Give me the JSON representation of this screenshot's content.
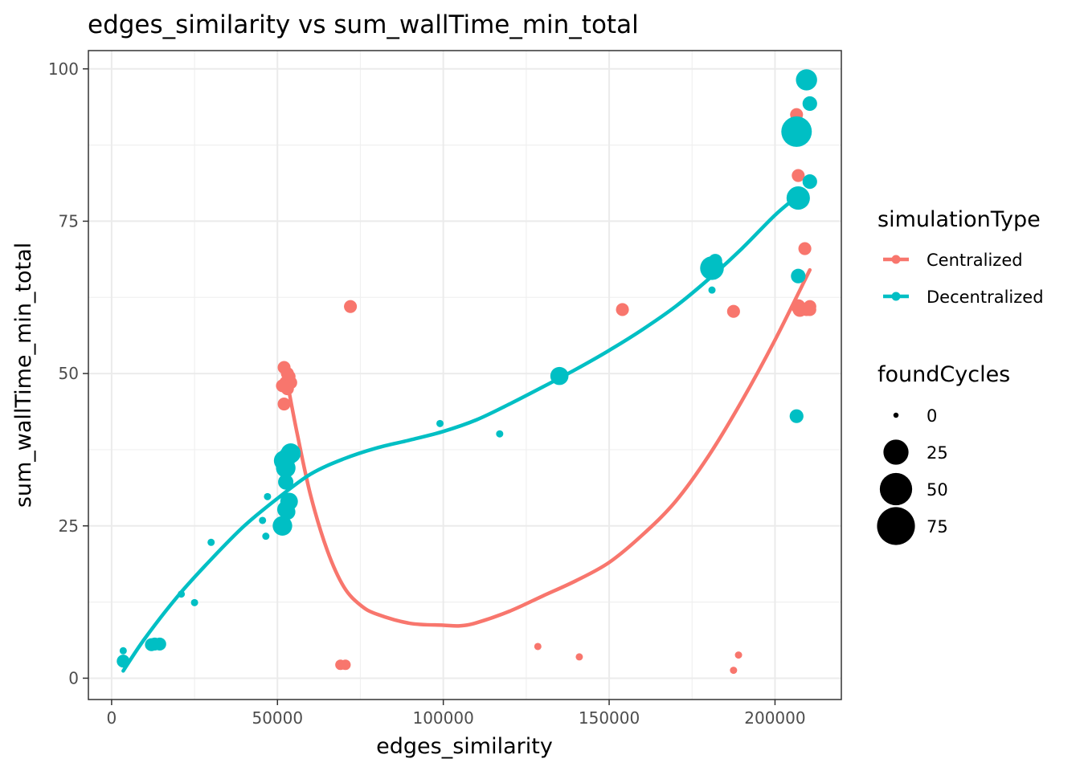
{
  "chart_data": {
    "type": "scatter",
    "title": "edges_similarity  vs  sum_wallTime_min_total",
    "xlabel": "edges_similarity",
    "ylabel": "sum_wallTime_min_total",
    "xlim": [
      -7000,
      220000
    ],
    "ylim": [
      -3.5,
      103
    ],
    "x_ticks": [
      0,
      50000,
      100000,
      150000,
      200000
    ],
    "y_ticks": [
      0,
      25,
      50,
      75,
      100
    ],
    "grid": true,
    "legend_color_title": "simulationType",
    "legend_size_title": "foundCycles",
    "legend_placement": "right",
    "size_legend": [
      {
        "label": "0",
        "value": 0
      },
      {
        "label": "25",
        "value": 25
      },
      {
        "label": "50",
        "value": 50
      },
      {
        "label": "75",
        "value": 75
      }
    ],
    "series": [
      {
        "name": "Centralized",
        "color": "#F8766D",
        "points": [
          {
            "x": 52000,
            "y": 51,
            "size": 3
          },
          {
            "x": 52500,
            "y": 48.5,
            "size": 3
          },
          {
            "x": 53000,
            "y": 50,
            "size": 3
          },
          {
            "x": 53500,
            "y": 49.5,
            "size": 3
          },
          {
            "x": 54000,
            "y": 48.5,
            "size": 3
          },
          {
            "x": 53000,
            "y": 47.5,
            "size": 3
          },
          {
            "x": 51500,
            "y": 48,
            "size": 3
          },
          {
            "x": 52000,
            "y": 45,
            "size": 3
          },
          {
            "x": 72000,
            "y": 61,
            "size": 3
          },
          {
            "x": 69000,
            "y": 2.2,
            "size": 1
          },
          {
            "x": 70500,
            "y": 2.2,
            "size": 1
          },
          {
            "x": 128500,
            "y": 5.2,
            "size": 0
          },
          {
            "x": 141000,
            "y": 3.5,
            "size": 0
          },
          {
            "x": 154000,
            "y": 60.5,
            "size": 3
          },
          {
            "x": 187500,
            "y": 60.2,
            "size": 3
          },
          {
            "x": 187500,
            "y": 1.3,
            "size": 0
          },
          {
            "x": 189000,
            "y": 3.8,
            "size": 0
          },
          {
            "x": 206500,
            "y": 92.5,
            "size": 3
          },
          {
            "x": 207000,
            "y": 82.5,
            "size": 3
          },
          {
            "x": 207000,
            "y": 61,
            "size": 5
          },
          {
            "x": 207500,
            "y": 60.5,
            "size": 5
          },
          {
            "x": 209000,
            "y": 70.5,
            "size": 3
          },
          {
            "x": 209500,
            "y": 60.5,
            "size": 3
          },
          {
            "x": 210500,
            "y": 61,
            "size": 3
          },
          {
            "x": 210500,
            "y": 60.5,
            "size": 3
          }
        ],
        "smooth": [
          [
            53500,
            47
          ],
          [
            56000,
            40
          ],
          [
            60000,
            30
          ],
          [
            65000,
            21
          ],
          [
            70000,
            15
          ],
          [
            75000,
            12
          ],
          [
            80000,
            10.5
          ],
          [
            90000,
            9
          ],
          [
            100000,
            8.7
          ],
          [
            105000,
            8.6
          ],
          [
            110000,
            9.1
          ],
          [
            120000,
            11
          ],
          [
            130000,
            13.5
          ],
          [
            140000,
            16
          ],
          [
            150000,
            19
          ],
          [
            160000,
            23.5
          ],
          [
            170000,
            29
          ],
          [
            180000,
            36.5
          ],
          [
            190000,
            45.5
          ],
          [
            200000,
            55.5
          ],
          [
            210500,
            67
          ]
        ]
      },
      {
        "name": "Decentralized",
        "color": "#00BFC4",
        "points": [
          {
            "x": 3500,
            "y": 4.5,
            "size": 0
          },
          {
            "x": 3500,
            "y": 2.8,
            "size": 3
          },
          {
            "x": 12000,
            "y": 5.5,
            "size": 3
          },
          {
            "x": 13000,
            "y": 5.6,
            "size": 3
          },
          {
            "x": 14500,
            "y": 5.6,
            "size": 3
          },
          {
            "x": 21000,
            "y": 13.8,
            "size": 0
          },
          {
            "x": 25000,
            "y": 12.4,
            "size": 0
          },
          {
            "x": 30000,
            "y": 22.3,
            "size": 0
          },
          {
            "x": 45500,
            "y": 25.9,
            "size": 0
          },
          {
            "x": 46500,
            "y": 23.3,
            "size": 0
          },
          {
            "x": 47000,
            "y": 29.8,
            "size": 0
          },
          {
            "x": 51500,
            "y": 25,
            "size": 14
          },
          {
            "x": 52500,
            "y": 27.7,
            "size": 9
          },
          {
            "x": 53000,
            "y": 27.3,
            "size": 7
          },
          {
            "x": 53500,
            "y": 29,
            "size": 10
          },
          {
            "x": 52500,
            "y": 32.2,
            "size": 6
          },
          {
            "x": 52500,
            "y": 34.5,
            "size": 14
          },
          {
            "x": 52000,
            "y": 35.7,
            "size": 16
          },
          {
            "x": 53000,
            "y": 36.3,
            "size": 12
          },
          {
            "x": 54000,
            "y": 36.9,
            "size": 15
          },
          {
            "x": 99000,
            "y": 41.8,
            "size": 0
          },
          {
            "x": 117000,
            "y": 40.1,
            "size": 0
          },
          {
            "x": 135000,
            "y": 49.6,
            "size": 11
          },
          {
            "x": 181000,
            "y": 63.7,
            "size": 0
          },
          {
            "x": 181000,
            "y": 67.3,
            "size": 25
          },
          {
            "x": 182000,
            "y": 68.5,
            "size": 4
          },
          {
            "x": 206500,
            "y": 43,
            "size": 4
          },
          {
            "x": 207000,
            "y": 66,
            "size": 5
          },
          {
            "x": 207000,
            "y": 78.8,
            "size": 24
          },
          {
            "x": 206500,
            "y": 89.7,
            "size": 50
          },
          {
            "x": 209500,
            "y": 98.2,
            "size": 18
          },
          {
            "x": 210500,
            "y": 94.3,
            "size": 5
          },
          {
            "x": 210500,
            "y": 81.5,
            "size": 5
          }
        ],
        "smooth": [
          [
            3500,
            1.2
          ],
          [
            10000,
            6.5
          ],
          [
            20000,
            13.5
          ],
          [
            30000,
            19.5
          ],
          [
            40000,
            25
          ],
          [
            50000,
            29.5
          ],
          [
            60000,
            33.5
          ],
          [
            70000,
            36
          ],
          [
            80000,
            37.8
          ],
          [
            90000,
            39.1
          ],
          [
            100000,
            40.5
          ],
          [
            110000,
            42.4
          ],
          [
            120000,
            45
          ],
          [
            130000,
            47.8
          ],
          [
            140000,
            50.7
          ],
          [
            150000,
            53.8
          ],
          [
            160000,
            57.2
          ],
          [
            170000,
            61
          ],
          [
            180000,
            65.5
          ],
          [
            190000,
            70.5
          ],
          [
            200000,
            76
          ],
          [
            207000,
            79.2
          ]
        ]
      }
    ]
  }
}
